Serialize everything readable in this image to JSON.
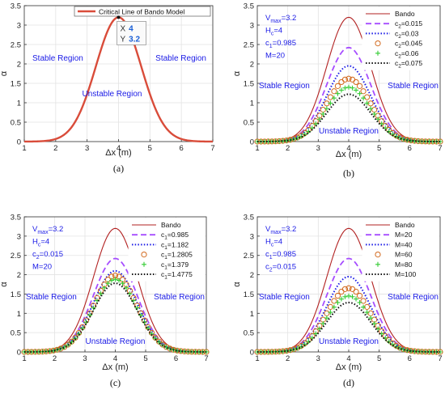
{
  "chart_data": [
    {
      "type": "line",
      "panel": "a",
      "caption": "(a)",
      "xlabel": "Δx (m)",
      "ylabel": "α",
      "xlim": [
        1,
        7
      ],
      "ylim": [
        0,
        3.5
      ],
      "xticks": [
        "1",
        "2",
        "3",
        "4",
        "5",
        "6",
        "7"
      ],
      "yticks": [
        "0",
        "0.5",
        "1",
        "1.5",
        "2",
        "2.5",
        "3",
        "3.5"
      ],
      "series": [
        {
          "name": "Critical Line of Bando Model",
          "peak": 3.2,
          "color": "#d94c3a",
          "style": "thick-solid"
        }
      ],
      "legend_position": "top",
      "datatip": {
        "x_label": "X",
        "x_value": "4",
        "y_label": "Y",
        "y_value": "3.2"
      },
      "regions": [
        {
          "text": "Stable Region",
          "where": "left"
        },
        {
          "text": "Stable Region",
          "where": "right"
        },
        {
          "text": "Unstable Region",
          "where": "under-peak"
        }
      ],
      "params": []
    },
    {
      "type": "line",
      "panel": "b",
      "caption": "(b)",
      "xlabel": "Δx (m)",
      "ylabel": "α",
      "xlim": [
        1,
        7
      ],
      "ylim": [
        0,
        3.5
      ],
      "xticks": [
        "1",
        "2",
        "3",
        "4",
        "5",
        "6",
        "7"
      ],
      "yticks": [
        "0",
        "0.5",
        "1",
        "1.5",
        "2",
        "2.5",
        "3",
        "3.5"
      ],
      "series": [
        {
          "name": "Bando",
          "peak": 3.2,
          "color": "#b22222",
          "style": "solid"
        },
        {
          "name": "c2=0.015",
          "legend_main": "c",
          "legend_sub": "2",
          "legend_rest": "=0.015",
          "peak": 2.42,
          "color": "#a64dff",
          "style": "dash"
        },
        {
          "name": "c2=0.03",
          "legend_main": "c",
          "legend_sub": "2",
          "legend_rest": "=0.03",
          "peak": 1.95,
          "color": "#1a1ae6",
          "style": "dot"
        },
        {
          "name": "c2=0.045",
          "legend_main": "c",
          "legend_sub": "2",
          "legend_rest": "=0.045",
          "peak": 1.62,
          "color": "#d2691e",
          "style": "circle"
        },
        {
          "name": "c2=0.06",
          "legend_main": "c",
          "legend_sub": "2",
          "legend_rest": "=0.06",
          "peak": 1.4,
          "color": "#33cc33",
          "style": "plus"
        },
        {
          "name": "c2=0.075",
          "legend_main": "c",
          "legend_sub": "2",
          "legend_rest": "=0.075",
          "peak": 1.22,
          "color": "#111111",
          "style": "dot"
        }
      ],
      "legend_position": "top-right",
      "regions": [
        {
          "text": "Stable Region",
          "where": "left"
        },
        {
          "text": "Stable Region",
          "where": "right"
        },
        {
          "text": "Unstable Region",
          "where": "bottom"
        }
      ],
      "params": [
        {
          "main": "V",
          "sub": "max",
          "rest": "=3.2"
        },
        {
          "main": "H",
          "sub": "c",
          "rest": "=4"
        },
        {
          "main": "c",
          "sub": "1",
          "rest": "=0.985"
        },
        {
          "main": "M=20",
          "sub": "",
          "rest": ""
        }
      ]
    },
    {
      "type": "line",
      "panel": "c",
      "caption": "(c)",
      "xlabel": "Δx (m)",
      "ylabel": "α",
      "xlim": [
        1,
        7
      ],
      "ylim": [
        0,
        3.5
      ],
      "xticks": [
        "1",
        "2",
        "3",
        "4",
        "5",
        "6",
        "7"
      ],
      "yticks": [
        "0",
        "0.5",
        "1",
        "1.5",
        "2",
        "2.5",
        "3",
        "3.5"
      ],
      "series": [
        {
          "name": "Bando",
          "peak": 3.2,
          "color": "#b22222",
          "style": "solid"
        },
        {
          "name": "c1=0.985",
          "legend_main": "c",
          "legend_sub": "1",
          "legend_rest": "=0.985",
          "peak": 2.42,
          "color": "#a64dff",
          "style": "dash"
        },
        {
          "name": "c1=1.182",
          "legend_main": "c",
          "legend_sub": "1",
          "legend_rest": "=1.182",
          "peak": 2.1,
          "color": "#1a1ae6",
          "style": "dot"
        },
        {
          "name": "c1=1.2805",
          "legend_main": "c",
          "legend_sub": "1",
          "legend_rest": "=1.2805",
          "peak": 1.98,
          "color": "#d2691e",
          "style": "circle"
        },
        {
          "name": "c1=1.379",
          "legend_main": "c",
          "legend_sub": "1",
          "legend_rest": "=1.379",
          "peak": 1.88,
          "color": "#33cc33",
          "style": "plus"
        },
        {
          "name": "c1=1.4775",
          "legend_main": "c",
          "legend_sub": "1",
          "legend_rest": "=1.4775",
          "peak": 1.78,
          "color": "#111111",
          "style": "dot"
        }
      ],
      "legend_position": "top-right",
      "regions": [
        {
          "text": "Stable Region",
          "where": "left"
        },
        {
          "text": "Stable Region",
          "where": "right"
        },
        {
          "text": "Unstable Region",
          "where": "bottom"
        }
      ],
      "params": [
        {
          "main": "V",
          "sub": "max",
          "rest": "=3.2"
        },
        {
          "main": "H",
          "sub": "c",
          "rest": "=4"
        },
        {
          "main": "c",
          "sub": "2",
          "rest": "=0.015"
        },
        {
          "main": "M=20",
          "sub": "",
          "rest": ""
        }
      ]
    },
    {
      "type": "line",
      "panel": "d",
      "caption": "(d)",
      "xlabel": "Δx (m)",
      "ylabel": "α",
      "xlim": [
        1,
        7
      ],
      "ylim": [
        0,
        3.5
      ],
      "xticks": [
        "1",
        "2",
        "3",
        "4",
        "5",
        "6",
        "7"
      ],
      "yticks": [
        "0",
        "0.5",
        "1",
        "1.5",
        "2",
        "2.5",
        "3",
        "3.5"
      ],
      "series": [
        {
          "name": "Bando",
          "peak": 3.2,
          "color": "#b22222",
          "style": "solid"
        },
        {
          "name": "M=20",
          "legend_main": "M=20",
          "legend_sub": "",
          "legend_rest": "",
          "peak": 2.42,
          "color": "#a64dff",
          "style": "dash"
        },
        {
          "name": "M=40",
          "legend_main": "M=40",
          "legend_sub": "",
          "legend_rest": "",
          "peak": 1.95,
          "color": "#1a1ae6",
          "style": "dot"
        },
        {
          "name": "M=60",
          "legend_main": "M=60",
          "legend_sub": "",
          "legend_rest": "",
          "peak": 1.65,
          "color": "#d2691e",
          "style": "circle"
        },
        {
          "name": "M=80",
          "legend_main": "M=80",
          "legend_sub": "",
          "legend_rest": "",
          "peak": 1.45,
          "color": "#33cc33",
          "style": "plus"
        },
        {
          "name": "M=100",
          "legend_main": "M=100",
          "legend_sub": "",
          "legend_rest": "",
          "peak": 1.28,
          "color": "#111111",
          "style": "dot"
        }
      ],
      "legend_position": "top-right",
      "regions": [
        {
          "text": "Stable Region",
          "where": "left"
        },
        {
          "text": "Stable Region",
          "where": "right"
        },
        {
          "text": "Unstable Region",
          "where": "bottom"
        }
      ],
      "params": [
        {
          "main": "V",
          "sub": "max",
          "rest": "=3.2"
        },
        {
          "main": "H",
          "sub": "c",
          "rest": "=4"
        },
        {
          "main": "c",
          "sub": "1",
          "rest": "=0.985"
        },
        {
          "main": "c",
          "sub": "2",
          "rest": "=0.015"
        }
      ]
    }
  ]
}
